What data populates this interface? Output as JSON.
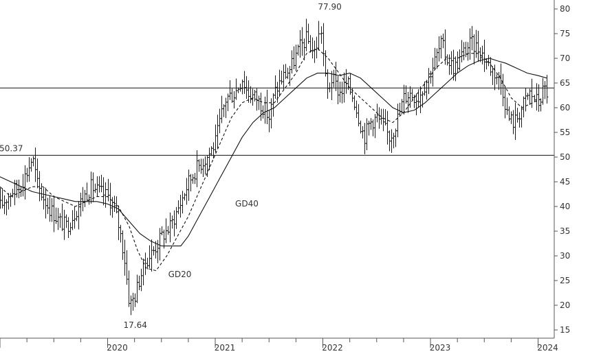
{
  "chart_data": {
    "type": "bar",
    "subtype": "ohlc-price-chart",
    "x_tick_labels": [
      "2020",
      "2021",
      "2022",
      "2023",
      "2024"
    ],
    "y_tick_labels": [
      "15",
      "20",
      "25",
      "30",
      "35",
      "40",
      "45",
      "50",
      "55",
      "60",
      "65",
      "70",
      "75",
      "80"
    ],
    "y_axis_position": "right",
    "ylim": [
      14,
      82
    ],
    "xlim": [
      2019.0,
      2024.15
    ],
    "reference_lines": [
      50.37,
      64.0
    ],
    "annotations": [
      {
        "text": "50.37",
        "x": 2019.25,
        "y": 50.37
      },
      {
        "text": "77.90",
        "x": 2021.98,
        "y": 77.9
      },
      {
        "text": "17.64",
        "x": 2020.16,
        "y": 17.64
      },
      {
        "text": "GD40",
        "x": 2021.16,
        "y": 40.0
      },
      {
        "text": "GD20",
        "x": 2020.55,
        "y": 26.5
      }
    ],
    "price_path": [
      [
        2019.0,
        40
      ],
      [
        2019.1,
        43
      ],
      [
        2019.18,
        44
      ],
      [
        2019.25,
        47
      ],
      [
        2019.3,
        50
      ],
      [
        2019.35,
        44
      ],
      [
        2019.45,
        40
      ],
      [
        2019.55,
        37
      ],
      [
        2019.62,
        36
      ],
      [
        2019.7,
        39
      ],
      [
        2019.78,
        42
      ],
      [
        2019.85,
        44
      ],
      [
        2019.92,
        43
      ],
      [
        2020.0,
        42
      ],
      [
        2020.05,
        40
      ],
      [
        2020.1,
        36
      ],
      [
        2020.15,
        30
      ],
      [
        2020.2,
        20
      ],
      [
        2020.25,
        22
      ],
      [
        2020.3,
        26
      ],
      [
        2020.35,
        29
      ],
      [
        2020.42,
        31
      ],
      [
        2020.5,
        34
      ],
      [
        2020.58,
        36
      ],
      [
        2020.66,
        40
      ],
      [
        2020.75,
        45
      ],
      [
        2020.83,
        48
      ],
      [
        2020.92,
        50
      ],
      [
        2021.0,
        53
      ],
      [
        2021.05,
        58
      ],
      [
        2021.1,
        62
      ],
      [
        2021.18,
        63
      ],
      [
        2021.25,
        66
      ],
      [
        2021.3,
        63
      ],
      [
        2021.38,
        62
      ],
      [
        2021.45,
        60
      ],
      [
        2021.5,
        58
      ],
      [
        2021.55,
        63
      ],
      [
        2021.62,
        66
      ],
      [
        2021.7,
        68
      ],
      [
        2021.78,
        72
      ],
      [
        2021.85,
        74
      ],
      [
        2021.92,
        71
      ],
      [
        2021.98,
        76
      ],
      [
        2022.03,
        63
      ],
      [
        2022.08,
        66
      ],
      [
        2022.15,
        63
      ],
      [
        2022.22,
        65
      ],
      [
        2022.28,
        62
      ],
      [
        2022.33,
        58
      ],
      [
        2022.38,
        54
      ],
      [
        2022.43,
        57
      ],
      [
        2022.5,
        58
      ],
      [
        2022.56,
        56
      ],
      [
        2022.62,
        54
      ],
      [
        2022.68,
        57
      ],
      [
        2022.75,
        62
      ],
      [
        2022.8,
        63
      ],
      [
        2022.88,
        62
      ],
      [
        2022.95,
        65
      ],
      [
        2023.03,
        69
      ],
      [
        2023.1,
        73
      ],
      [
        2023.15,
        70
      ],
      [
        2023.22,
        68
      ],
      [
        2023.3,
        71
      ],
      [
        2023.37,
        73
      ],
      [
        2023.45,
        72
      ],
      [
        2023.53,
        69
      ],
      [
        2023.6,
        67
      ],
      [
        2023.66,
        65
      ],
      [
        2023.72,
        58
      ],
      [
        2023.78,
        57
      ],
      [
        2023.85,
        60
      ],
      [
        2023.92,
        63
      ],
      [
        2024.0,
        61
      ],
      [
        2024.05,
        64
      ],
      [
        2024.08,
        63
      ]
    ],
    "series": [
      {
        "name": "GD20",
        "style": "dashed",
        "points": [
          [
            2019.0,
            44
          ],
          [
            2019.1,
            42
          ],
          [
            2019.2,
            43
          ],
          [
            2019.3,
            44
          ],
          [
            2019.4,
            44
          ],
          [
            2019.5,
            42
          ],
          [
            2019.6,
            41
          ],
          [
            2019.7,
            40
          ],
          [
            2019.8,
            41
          ],
          [
            2019.9,
            42
          ],
          [
            2020.0,
            42
          ],
          [
            2020.1,
            40
          ],
          [
            2020.2,
            36
          ],
          [
            2020.28,
            31
          ],
          [
            2020.36,
            27.5
          ],
          [
            2020.45,
            27
          ],
          [
            2020.55,
            30
          ],
          [
            2020.65,
            34
          ],
          [
            2020.75,
            38
          ],
          [
            2020.85,
            43
          ],
          [
            2020.95,
            48
          ],
          [
            2021.05,
            53
          ],
          [
            2021.15,
            58
          ],
          [
            2021.25,
            61
          ],
          [
            2021.35,
            62
          ],
          [
            2021.45,
            61
          ],
          [
            2021.55,
            61
          ],
          [
            2021.65,
            64
          ],
          [
            2021.75,
            67
          ],
          [
            2021.85,
            71
          ],
          [
            2021.95,
            72
          ],
          [
            2022.05,
            70
          ],
          [
            2022.15,
            67
          ],
          [
            2022.25,
            64
          ],
          [
            2022.35,
            62
          ],
          [
            2022.45,
            60
          ],
          [
            2022.55,
            58
          ],
          [
            2022.65,
            57
          ],
          [
            2022.75,
            59
          ],
          [
            2022.85,
            62
          ],
          [
            2022.95,
            65
          ],
          [
            2023.05,
            68
          ],
          [
            2023.15,
            70
          ],
          [
            2023.25,
            70
          ],
          [
            2023.35,
            71
          ],
          [
            2023.45,
            71
          ],
          [
            2023.55,
            69
          ],
          [
            2023.65,
            66
          ],
          [
            2023.75,
            62
          ],
          [
            2023.85,
            60
          ],
          [
            2023.95,
            61
          ],
          [
            2024.05,
            62
          ]
        ]
      },
      {
        "name": "GD40",
        "style": "solid",
        "points": [
          [
            2019.0,
            46
          ],
          [
            2019.1,
            45
          ],
          [
            2019.2,
            44
          ],
          [
            2019.3,
            43
          ],
          [
            2019.4,
            42.5
          ],
          [
            2019.5,
            42
          ],
          [
            2019.6,
            41.5
          ],
          [
            2019.7,
            41
          ],
          [
            2019.8,
            41
          ],
          [
            2019.9,
            41
          ],
          [
            2020.0,
            40.5
          ],
          [
            2020.1,
            39.5
          ],
          [
            2020.2,
            37
          ],
          [
            2020.3,
            34.5
          ],
          [
            2020.4,
            33
          ],
          [
            2020.5,
            32
          ],
          [
            2020.6,
            32
          ],
          [
            2020.68,
            32
          ],
          [
            2020.75,
            34
          ],
          [
            2020.85,
            38
          ],
          [
            2020.95,
            42
          ],
          [
            2021.05,
            46
          ],
          [
            2021.15,
            50
          ],
          [
            2021.25,
            54
          ],
          [
            2021.35,
            57
          ],
          [
            2021.45,
            59
          ],
          [
            2021.55,
            60
          ],
          [
            2021.65,
            62
          ],
          [
            2021.75,
            64
          ],
          [
            2021.85,
            66
          ],
          [
            2021.95,
            67
          ],
          [
            2022.05,
            67
          ],
          [
            2022.15,
            66.5
          ],
          [
            2022.25,
            67
          ],
          [
            2022.35,
            66
          ],
          [
            2022.45,
            64
          ],
          [
            2022.55,
            62
          ],
          [
            2022.65,
            60
          ],
          [
            2022.75,
            59
          ],
          [
            2022.85,
            59.5
          ],
          [
            2022.95,
            61
          ],
          [
            2023.05,
            63
          ],
          [
            2023.15,
            65
          ],
          [
            2023.25,
            67
          ],
          [
            2023.35,
            68.5
          ],
          [
            2023.45,
            69.5
          ],
          [
            2023.55,
            70
          ],
          [
            2023.62,
            69.5
          ],
          [
            2023.7,
            69
          ],
          [
            2023.8,
            68
          ],
          [
            2023.9,
            67
          ],
          [
            2024.0,
            66.5
          ],
          [
            2024.08,
            66
          ]
        ]
      }
    ],
    "grid": false,
    "legend": "none"
  }
}
